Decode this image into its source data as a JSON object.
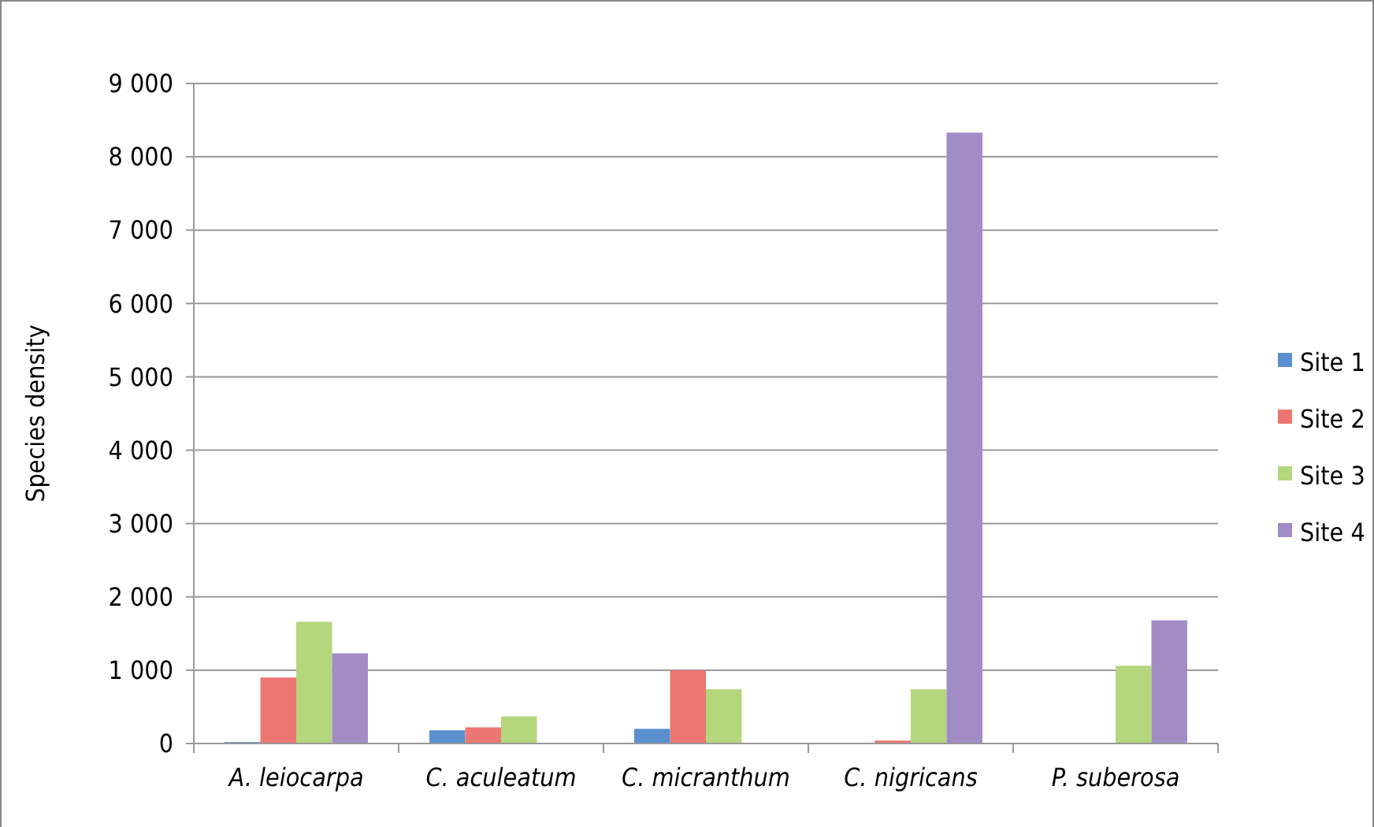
{
  "chart_data": {
    "type": "bar",
    "ylabel": "Species density",
    "categories": [
      "A. leiocarpa",
      "C. aculeatum",
      "C. micranthum",
      "C. nigricans",
      "P. suberosa"
    ],
    "series": [
      {
        "name": "Site 1",
        "color": "#5a8fd0",
        "values": [
          20,
          180,
          200,
          0,
          0
        ]
      },
      {
        "name": "Site 2",
        "color": "#ec7672",
        "values": [
          900,
          220,
          1000,
          40,
          0
        ]
      },
      {
        "name": "Site 3",
        "color": "#b4d67c",
        "values": [
          1660,
          370,
          740,
          740,
          1060
        ]
      },
      {
        "name": "Site 4",
        "color": "#a28cc6",
        "values": [
          1230,
          0,
          0,
          8330,
          1680
        ]
      }
    ],
    "ylim": [
      0,
      9000
    ],
    "yticks": [
      {
        "value": 0,
        "label": "0"
      },
      {
        "value": 1000,
        "label": "1 000"
      },
      {
        "value": 2000,
        "label": "2 000"
      },
      {
        "value": 3000,
        "label": "3 000"
      },
      {
        "value": 4000,
        "label": "4 000"
      },
      {
        "value": 5000,
        "label": "5 000"
      },
      {
        "value": 6000,
        "label": "6 000"
      },
      {
        "value": 7000,
        "label": "7 000"
      },
      {
        "value": 8000,
        "label": "8 000"
      },
      {
        "value": 9000,
        "label": "9 000"
      }
    ],
    "grid": "y",
    "legend": "right"
  }
}
